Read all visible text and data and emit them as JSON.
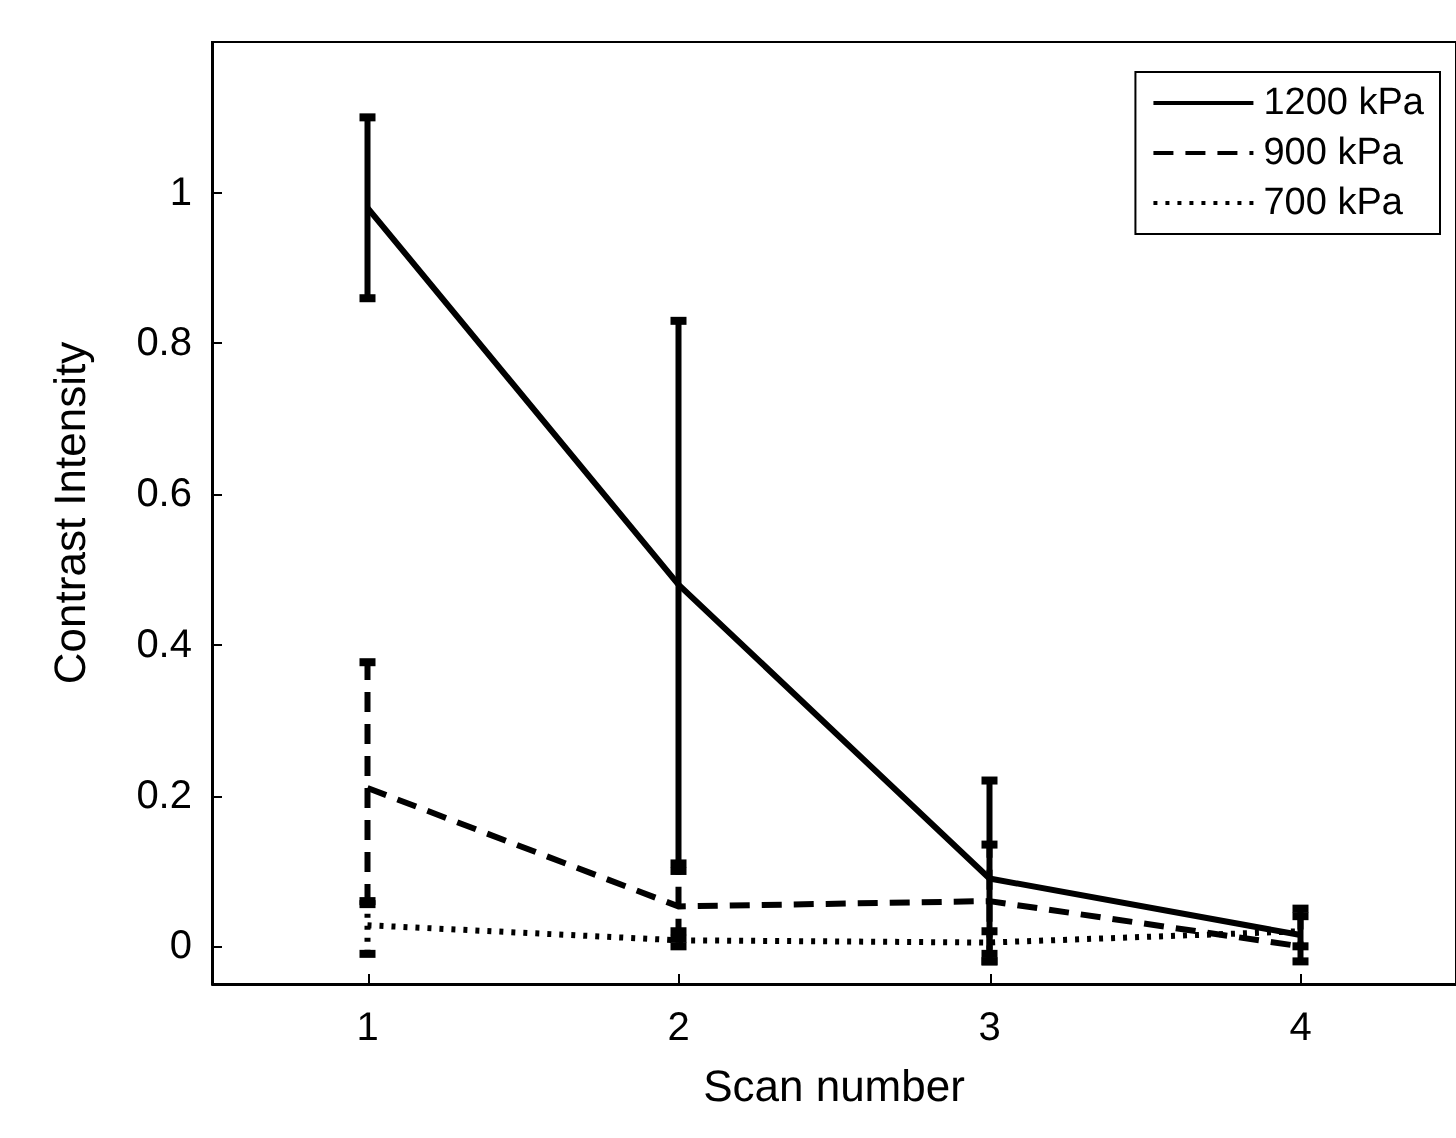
{
  "chart_data": {
    "type": "line",
    "xlabel": "Scan number",
    "ylabel": "Contrast Intensity",
    "x": [
      1,
      2,
      3,
      4
    ],
    "xlim": [
      0.5,
      4.5
    ],
    "xticks": [
      1,
      2,
      3,
      4
    ],
    "ylim": [
      -0.05,
      1.2
    ],
    "yticks": [
      0,
      0.2,
      0.4,
      0.6,
      0.8,
      1
    ],
    "grid": false,
    "legend": "top right",
    "marker": "none",
    "series": [
      {
        "name": "1200 kPa",
        "color": "#000000",
        "line_style": "solid",
        "values": [
          0.98,
          0.48,
          0.09,
          0.015
        ],
        "errors": [
          [
            0.86,
            1.1
          ],
          [
            0.11,
            0.83
          ],
          [
            -0.02,
            0.22
          ],
          [
            0.0,
            0.04
          ]
        ]
      },
      {
        "name": "900 kPa",
        "color": "#000000",
        "line_style": "dashed",
        "values": [
          0.21,
          0.053,
          0.06,
          0.0
        ],
        "errors": [
          [
            0.056,
            0.377
          ],
          [
            0.01,
            0.1
          ],
          [
            -0.01,
            0.135
          ],
          [
            -0.02,
            0.05
          ]
        ]
      },
      {
        "name": "700 kPa",
        "color": "#000000",
        "line_style": "dotted",
        "values": [
          0.028,
          0.008,
          0.005,
          0.02
        ],
        "errors": [
          [
            -0.01,
            0.06
          ],
          [
            0.0,
            0.02
          ],
          [
            -0.02,
            0.02
          ],
          null
        ]
      }
    ]
  }
}
